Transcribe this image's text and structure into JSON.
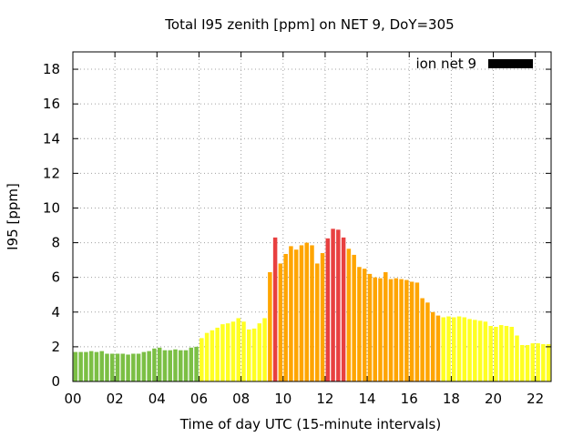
{
  "chart_data": {
    "type": "bar",
    "title": "Total I95 zenith [ppm] on NET 9, DoY=305",
    "xlabel": "Time of day UTC (15-minute intervals)",
    "ylabel": "I95 [ppm]",
    "xlim": [
      0,
      22.75
    ],
    "ylim": [
      0,
      19
    ],
    "bar_interval_hours": 0.25,
    "x_ticks": [
      0,
      2,
      4,
      6,
      8,
      10,
      12,
      14,
      16,
      18,
      20,
      22
    ],
    "x_tick_labels": [
      "00",
      "02",
      "04",
      "06",
      "08",
      "10",
      "12",
      "14",
      "16",
      "18",
      "20",
      "22"
    ],
    "y_ticks": [
      0,
      2,
      4,
      6,
      8,
      10,
      12,
      14,
      16,
      18
    ],
    "y_tick_labels": [
      "0",
      "2",
      "4",
      "6",
      "8",
      "10",
      "12",
      "14",
      "16",
      "18"
    ],
    "grid": true,
    "legend": {
      "label": "ion net 9",
      "color": "#000000",
      "position": "top-right"
    },
    "colors": {
      "green": "#7bbf44",
      "yellow": "#ffff22",
      "orange": "#ffa500",
      "red": "#e84040"
    },
    "x": [
      0.0,
      0.25,
      0.5,
      0.75,
      1.0,
      1.25,
      1.5,
      1.75,
      2.0,
      2.25,
      2.5,
      2.75,
      3.0,
      3.25,
      3.5,
      3.75,
      4.0,
      4.25,
      4.5,
      4.75,
      5.0,
      5.25,
      5.5,
      5.75,
      6.0,
      6.25,
      6.5,
      6.75,
      7.0,
      7.25,
      7.5,
      7.75,
      8.0,
      8.25,
      8.5,
      8.75,
      9.0,
      9.25,
      9.5,
      9.75,
      10.0,
      10.25,
      10.5,
      10.75,
      11.0,
      11.25,
      11.5,
      11.75,
      12.0,
      12.25,
      12.5,
      12.75,
      13.0,
      13.25,
      13.5,
      13.75,
      14.0,
      14.25,
      14.5,
      14.75,
      15.0,
      15.25,
      15.5,
      15.75,
      16.0,
      16.25,
      16.5,
      16.75,
      17.0,
      17.25,
      17.5,
      17.75,
      18.0,
      18.25,
      18.5,
      18.75,
      19.0,
      19.25,
      19.5,
      19.75,
      20.0,
      20.25,
      20.5,
      20.75,
      21.0,
      21.25,
      21.5,
      21.75,
      22.0,
      22.25,
      22.5
    ],
    "values": [
      1.7,
      1.7,
      1.7,
      1.75,
      1.7,
      1.75,
      1.6,
      1.6,
      1.6,
      1.6,
      1.55,
      1.6,
      1.6,
      1.7,
      1.75,
      1.9,
      1.95,
      1.8,
      1.8,
      1.85,
      1.8,
      1.8,
      1.95,
      2.0,
      2.5,
      2.8,
      2.95,
      3.1,
      3.3,
      3.35,
      3.45,
      3.65,
      3.45,
      3.0,
      3.05,
      3.35,
      3.65,
      6.3,
      8.3,
      6.8,
      7.35,
      7.8,
      7.6,
      7.85,
      8.0,
      7.85,
      6.8,
      7.4,
      8.25,
      8.8,
      8.75,
      8.3,
      7.65,
      7.3,
      6.6,
      6.5,
      6.2,
      6.0,
      5.95,
      6.3,
      5.9,
      5.95,
      5.9,
      5.85,
      5.75,
      5.7,
      4.8,
      4.55,
      4.0,
      3.8,
      3.7,
      3.75,
      3.7,
      3.75,
      3.7,
      3.6,
      3.55,
      3.5,
      3.45,
      3.2,
      3.15,
      3.25,
      3.2,
      3.15,
      2.65,
      2.1,
      2.1,
      2.2,
      2.2,
      2.15,
      2.15
    ],
    "bar_colors": [
      "green",
      "green",
      "green",
      "green",
      "green",
      "green",
      "green",
      "green",
      "green",
      "green",
      "green",
      "green",
      "green",
      "green",
      "green",
      "green",
      "green",
      "green",
      "green",
      "green",
      "green",
      "green",
      "green",
      "green",
      "yellow",
      "yellow",
      "yellow",
      "yellow",
      "yellow",
      "yellow",
      "yellow",
      "yellow",
      "yellow",
      "yellow",
      "yellow",
      "yellow",
      "yellow",
      "orange",
      "red",
      "orange",
      "orange",
      "orange",
      "orange",
      "orange",
      "orange",
      "orange",
      "orange",
      "orange",
      "red",
      "red",
      "red",
      "red",
      "orange",
      "orange",
      "orange",
      "orange",
      "orange",
      "orange",
      "orange",
      "orange",
      "orange",
      "orange",
      "orange",
      "orange",
      "orange",
      "orange",
      "orange",
      "orange",
      "orange",
      "orange",
      "yellow",
      "yellow",
      "yellow",
      "yellow",
      "yellow",
      "yellow",
      "yellow",
      "yellow",
      "yellow",
      "yellow",
      "yellow",
      "yellow",
      "yellow",
      "yellow",
      "yellow",
      "yellow",
      "yellow",
      "yellow",
      "yellow",
      "yellow",
      "yellow"
    ]
  }
}
